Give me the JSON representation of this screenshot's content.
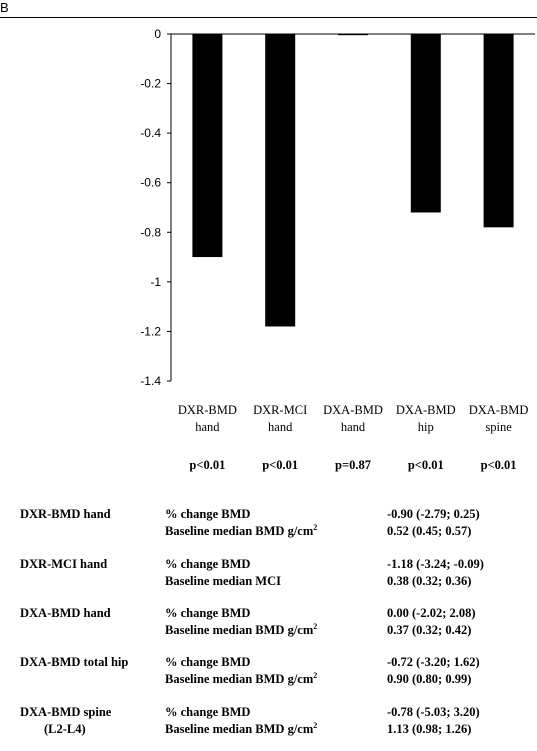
{
  "figure_label": "B",
  "chart_data": {
    "type": "bar",
    "categories": [
      {
        "line1": "DXR-BMD",
        "line2": "hand"
      },
      {
        "line1": "DXR-MCI",
        "line2": "hand"
      },
      {
        "line1": "DXA-BMD",
        "line2": "hand"
      },
      {
        "line1": "DXA-BMD",
        "line2": "hip"
      },
      {
        "line1": "DXA-BMD",
        "line2": "spine"
      }
    ],
    "values": [
      -0.9,
      -1.18,
      0.0,
      -0.72,
      -0.78
    ],
    "yticks": [
      "0",
      "-0.2",
      "-0.4",
      "-0.6",
      "-0.8",
      "-1",
      "-1.2",
      "-1.4"
    ],
    "ylim": [
      -1.4,
      0
    ],
    "pvalues": [
      "p<0.01",
      "p<0.01",
      "p=0.87",
      "p<0.01",
      "p<0.01"
    ],
    "bar_color": "#000000"
  },
  "table": [
    {
      "name": "DXR-BMD hand",
      "name2": "",
      "m1": "% change BMD",
      "m2": "Baseline median BMD g/cm",
      "m2_sup": "2",
      "v1": "-0.90 (-2.79; 0.25)",
      "v2": "0.52 (0.45; 0.57)"
    },
    {
      "name": "DXR-MCI hand",
      "name2": "",
      "m1": "% change BMD",
      "m2": "Baseline median MCI",
      "m2_sup": "",
      "v1": "-1.18 (-3.24; -0.09)",
      "v2": "0.38 (0.32; 0.36)"
    },
    {
      "name": "DXA-BMD hand",
      "name2": "",
      "m1": "% change BMD",
      "m2": "Baseline median BMD g/cm",
      "m2_sup": "2",
      "v1": "0.00 (-2.02; 2.08)",
      "v2": "0.37 (0.32; 0.42)"
    },
    {
      "name": "DXA-BMD total hip",
      "name2": "",
      "m1": "% change BMD",
      "m2": "Baseline median BMD g/cm",
      "m2_sup": "2",
      "v1": "-0.72 (-3.20; 1.62)",
      "v2": "0.90 (0.80; 0.99)"
    },
    {
      "name": "DXA-BMD spine",
      "name2": "(L2-L4)",
      "m1": "% change BMD",
      "m2": "Baseline median BMD g/cm",
      "m2_sup": "2",
      "v1": "-0.78 (-5.03; 3.20)",
      "v2": "1.13 (0.98; 1.26)"
    }
  ]
}
